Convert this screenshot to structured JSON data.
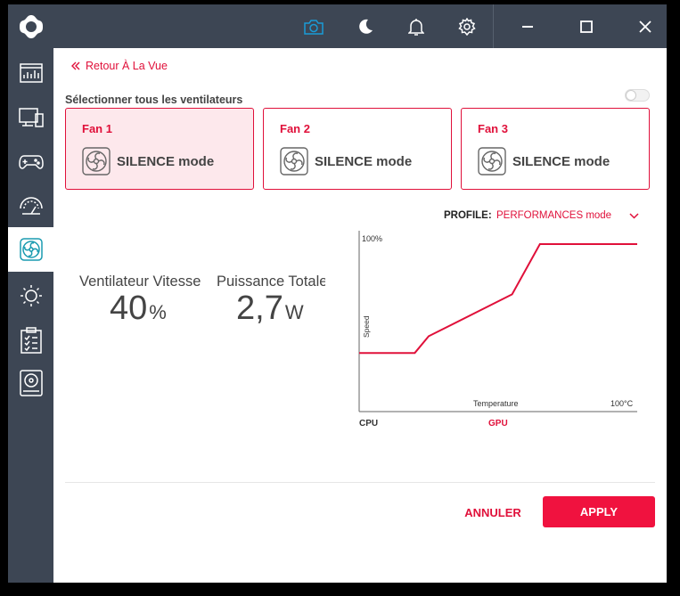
{
  "nav": {
    "back_label": "Retour À La Vue"
  },
  "fans": {
    "select_all_label": "Sélectionner tous les ventilateurs",
    "select_all_on": false,
    "items": [
      {
        "title": "Fan 1",
        "mode": "SILENCE mode",
        "selected": true
      },
      {
        "title": "Fan 2",
        "mode": "SILENCE mode",
        "selected": false
      },
      {
        "title": "Fan 3",
        "mode": "SILENCE mode",
        "selected": false
      }
    ]
  },
  "stats": {
    "speed_label": "Ventilateur Vitesse",
    "speed_value": "40",
    "speed_unit": "%",
    "power_label": "Puissance Totale",
    "power_value": "2,7",
    "power_unit": "W"
  },
  "profile": {
    "label": "PROFILE:",
    "value": "PERFORMANCES mode"
  },
  "chart_data": {
    "type": "line",
    "ylabel": "Speed",
    "xlabel": "Temperature",
    "y_max_label": "100%",
    "x_max_label": "100°C",
    "x_sources": [
      "CPU",
      "GPU"
    ],
    "active_source": "GPU",
    "xlim": [
      0,
      100
    ],
    "ylim": [
      0,
      100
    ],
    "series": [
      {
        "x": [
          0,
          20,
          25,
          55,
          65,
          100
        ],
        "y": [
          35,
          35,
          45,
          70,
          100,
          100
        ]
      }
    ]
  },
  "actions": {
    "cancel_label": "ANNULER",
    "apply_label": "APPLY"
  },
  "colors": {
    "accent": "#e0103a",
    "sidebar": "#3d4654",
    "selected_card_bg": "#fde8ec"
  }
}
